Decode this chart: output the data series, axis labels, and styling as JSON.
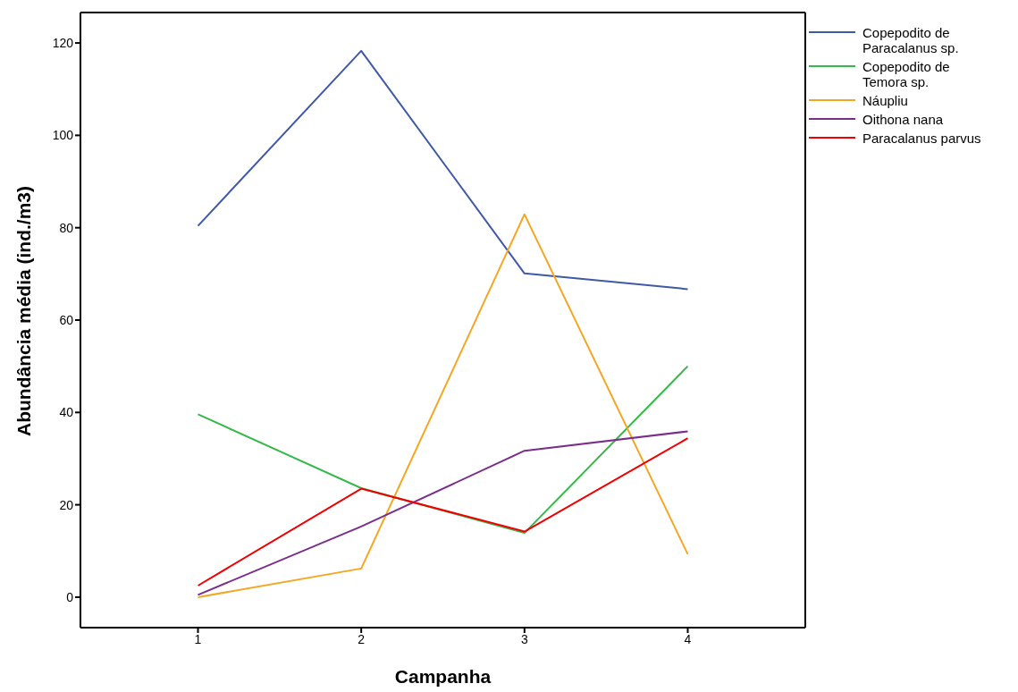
{
  "chart_data": {
    "type": "line",
    "xlabel": "Campanha",
    "ylabel": "Abundância média (ind./m3)",
    "x": [
      1,
      2,
      3,
      4
    ],
    "xlim": [
      0.28,
      4.72
    ],
    "xticks": [
      1,
      2,
      3,
      4
    ],
    "ylim": [
      -6.6,
      126.6
    ],
    "yticks": [
      0,
      20,
      40,
      60,
      80,
      100,
      120
    ],
    "grid": false,
    "legend": "top right",
    "marker": "none",
    "line_style": "solid",
    "series": [
      {
        "name": "Copepodito de Paracalanus sp.",
        "color": "#3f58a8",
        "values": [
          80.4,
          118.3,
          70.1,
          66.7
        ]
      },
      {
        "name": "Copepodito de Temora sp.",
        "color": "#36b84a",
        "values": [
          39.6,
          23.6,
          13.9,
          50
        ]
      },
      {
        "name": "Náupliu",
        "color": "#f5a623",
        "values": [
          0,
          6.2,
          82.9,
          9.3
        ]
      },
      {
        "name": "Oithona nana",
        "color": "#7b2d8c",
        "values": [
          0.5,
          15.3,
          31.7,
          35.9
        ]
      },
      {
        "name": "Paracalanus parvus",
        "color": "#f00000",
        "values": [
          2.5,
          23.5,
          14.2,
          34.4
        ]
      }
    ]
  }
}
